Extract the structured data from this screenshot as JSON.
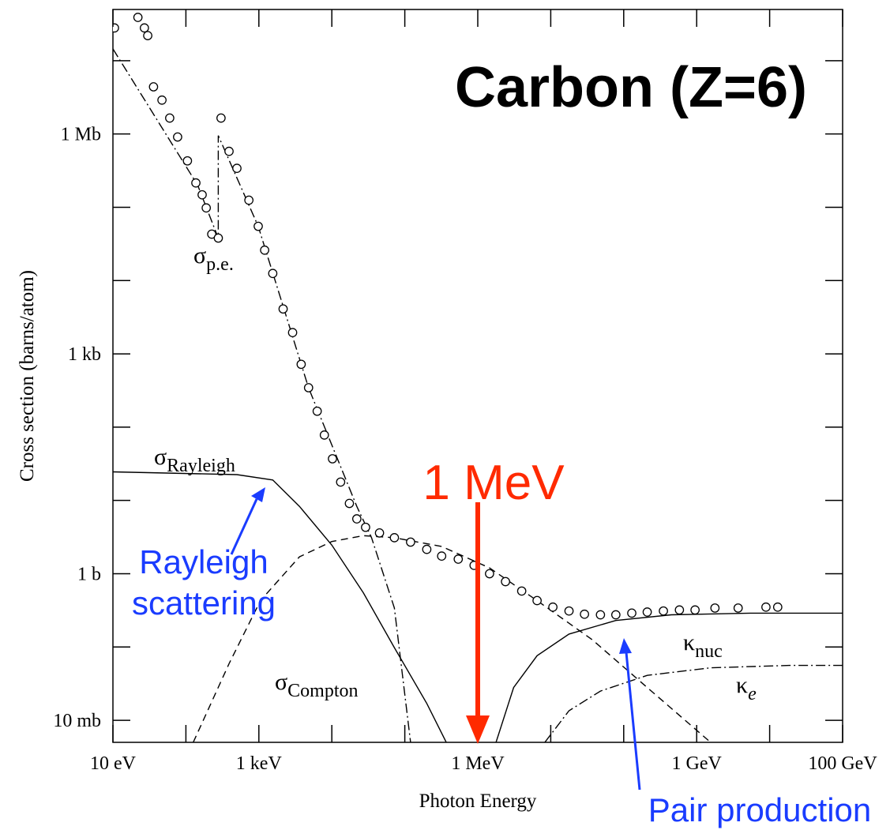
{
  "chart_data": {
    "type": "line",
    "title": "Carbon (Z=6)",
    "x_label": "Photon Energy",
    "y_label": "Cross section  (barns/atom)",
    "xscale": "log",
    "yscale": "log",
    "xlim": [
      10,
      100000000000
    ],
    "ylim": [
      0.005,
      50000000
    ],
    "xticks": [
      {
        "value": 10,
        "label": "10 eV"
      },
      {
        "value": 1000,
        "label": "1 keV"
      },
      {
        "value": 1000000,
        "label": "1 MeV"
      },
      {
        "value": 1000000000,
        "label": "1 GeV"
      },
      {
        "value": 100000000000,
        "label": "100 GeV"
      }
    ],
    "xminor_ticks": [
      100,
      10000,
      100000,
      10000000,
      100000000,
      10000000000
    ],
    "yticks": [
      {
        "value": 1000000,
        "label": "1 Mb"
      },
      {
        "value": 1000,
        "label": "1 kb"
      },
      {
        "value": 1,
        "label": "1 b"
      },
      {
        "value": 0.01,
        "label": "10 mb"
      }
    ],
    "yminor_ticks": [
      10000000,
      100000,
      10000,
      100,
      10,
      0.1
    ],
    "series": [
      {
        "style": "markers",
        "color": "#000000",
        "x": [
          10.5,
          22,
          27,
          30,
          36,
          47,
          60,
          77,
          105,
          137,
          167,
          190,
          226,
          278,
          303,
          390,
          500,
          730,
          980,
          1200,
          1550,
          2150,
          2900,
          3800,
          4800,
          6300,
          7900,
          10200,
          13200,
          17400,
          22000,
          29000,
          45000,
          72000,
          120000,
          200000,
          320000,
          540000,
          890000,
          1450000,
          2400000,
          4000000,
          6500000,
          10700000,
          17800000,
          29000000,
          48000000,
          78000000,
          129000000,
          210000000,
          350000000,
          580000000,
          950000000,
          1780000000,
          3700000000,
          8900000000,
          12900000000
        ],
        "values": [
          28000000,
          39000000,
          28000000,
          22000000,
          4400000,
          2900000,
          1650000,
          910000,
          430000,
          215000,
          148000,
          98000,
          43000,
          38000,
          1650000,
          580000,
          340000,
          125000,
          55000,
          26000,
          12500,
          4100,
          1950,
          720,
          345,
          165,
          78,
          37,
          17.8,
          9.1,
          5.6,
          4.3,
          3.6,
          3.1,
          2.7,
          2.15,
          1.74,
          1.58,
          1.3,
          1.0,
          0.78,
          0.58,
          0.43,
          0.35,
          0.31,
          0.28,
          0.275,
          0.275,
          0.29,
          0.3,
          0.31,
          0.32,
          0.32,
          0.34,
          0.34,
          0.35,
          0.35
        ]
      },
      {
        "style": "dashdot",
        "color": "#000000",
        "x": [
          10,
          145,
          278,
          278,
          980,
          4800,
          22000,
          35000,
          72000,
          120000
        ],
        "values": [
          14500000,
          200000,
          38000,
          950000,
          55000,
          345,
          8.3,
          3.1,
          0.34,
          0.005
        ]
      },
      {
        "style": "solid",
        "color": "#000000",
        "x": [
          10,
          500,
          1550,
          3600,
          10000,
          27000,
          72000,
          200000,
          370000
        ],
        "values": [
          24.5,
          22.5,
          19,
          8.3,
          2.45,
          0.55,
          0.098,
          0.017,
          0.005
        ]
      },
      {
        "style": "dashed",
        "color": "#000000",
        "x": [
          126,
          390,
          1050,
          3600,
          10000,
          27000,
          72000,
          320000,
          1450000,
          6500000,
          37000000,
          210000000,
          1550000000
        ],
        "values": [
          0.005,
          0.059,
          0.43,
          1.7,
          2.75,
          3.3,
          3.1,
          2.35,
          1.2,
          0.43,
          0.126,
          0.028,
          0.005
        ]
      },
      {
        "style": "solid",
        "color": "#000000",
        "x": [
          1780000,
          3100000,
          6500000,
          17800000,
          78000000,
          450000000,
          5400000000,
          100000000000
        ],
        "values": [
          0.005,
          0.028,
          0.076,
          0.15,
          0.23,
          0.275,
          0.29,
          0.29
        ]
      },
      {
        "style": "dashdot",
        "color": "#000000",
        "x": [
          8300000,
          17800000,
          48000000,
          210000000,
          1550000000,
          18600000000,
          100000000000
        ],
        "values": [
          0.005,
          0.0135,
          0.025,
          0.041,
          0.052,
          0.056,
          0.056
        ]
      }
    ],
    "annotations": [
      {
        "text": "σ",
        "sub": "p.e."
      },
      {
        "text": "σ",
        "sub": "Rayleigh"
      },
      {
        "text": "σ",
        "sub": "Compton"
      },
      {
        "text": "κ",
        "sub": "nuc"
      },
      {
        "text": "κ",
        "sub": "e"
      }
    ],
    "callouts": [
      {
        "text": "1 MeV",
        "x": 1000000,
        "color": "#ff2a00"
      },
      {
        "lines": [
          "Rayleigh",
          "scattering"
        ],
        "color": "#1a3cff"
      },
      {
        "text": "Pair production",
        "color": "#1a3cff"
      }
    ]
  }
}
